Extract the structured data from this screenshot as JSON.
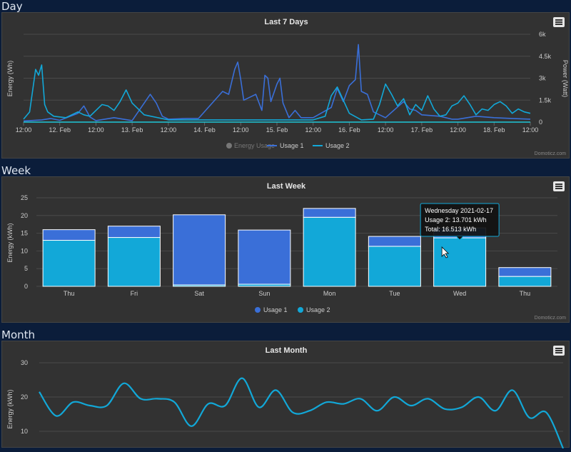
{
  "sections": {
    "day": "Day",
    "week": "Week",
    "month": "Month"
  },
  "credit": "Domoticz.com",
  "colors": {
    "usage1": "#3a6fd8",
    "usage2": "#12a8d8",
    "energy": "#777777",
    "grid": "#4a4a4a",
    "panel": "#323232",
    "text": "#cccccc"
  },
  "chart_data": [
    {
      "type": "line",
      "title": "Last 7 Days",
      "ylabel": "Energy (Wh)",
      "y2label": "Power (Watt)",
      "y2ticks": [
        "0",
        "1.5k",
        "3k",
        "4.5k",
        "6k"
      ],
      "y2lim": [
        0,
        6000
      ],
      "xticks": [
        "12:00",
        "12. Feb",
        "12:00",
        "13. Feb",
        "12:00",
        "14. Feb",
        "12:00",
        "15. Feb",
        "12:00",
        "16. Feb",
        "12:00",
        "17. Feb",
        "12:00",
        "18. Feb",
        "12:00"
      ],
      "x_range_hours": [
        0,
        168
      ],
      "legend": [
        "Energy Usage",
        "Usage 1",
        "Usage 2"
      ],
      "series": [
        {
          "name": "Usage 1",
          "points": [
            [
              0,
              80
            ],
            [
              6,
              150
            ],
            [
              9,
              250
            ],
            [
              12,
              120
            ],
            [
              18,
              600
            ],
            [
              20,
              1100
            ],
            [
              22,
              350
            ],
            [
              24,
              100
            ],
            [
              30,
              300
            ],
            [
              36,
              100
            ],
            [
              42,
              1900
            ],
            [
              44,
              1300
            ],
            [
              46,
              400
            ],
            [
              48,
              200
            ],
            [
              54,
              250
            ],
            [
              58,
              250
            ],
            [
              66,
              2100
            ],
            [
              68,
              1900
            ],
            [
              70,
              3600
            ],
            [
              71,
              4100
            ],
            [
              72,
              2900
            ],
            [
              73,
              1500
            ],
            [
              75,
              1700
            ],
            [
              77,
              1900
            ],
            [
              79,
              800
            ],
            [
              80,
              3200
            ],
            [
              81,
              3000
            ],
            [
              82,
              1400
            ],
            [
              84,
              2600
            ],
            [
              85,
              3000
            ],
            [
              86,
              1300
            ],
            [
              88,
              300
            ],
            [
              90,
              800
            ],
            [
              92,
              300
            ],
            [
              96,
              300
            ],
            [
              102,
              1000
            ],
            [
              104,
              2300
            ],
            [
              106,
              1400
            ],
            [
              108,
              2500
            ],
            [
              110,
              2900
            ],
            [
              111,
              5300
            ],
            [
              112,
              2100
            ],
            [
              114,
              1900
            ],
            [
              116,
              700
            ],
            [
              120,
              300
            ],
            [
              126,
              1400
            ],
            [
              128,
              900
            ],
            [
              130,
              800
            ],
            [
              132,
              500
            ],
            [
              138,
              400
            ],
            [
              142,
              200
            ],
            [
              144,
              200
            ],
            [
              150,
              400
            ],
            [
              156,
              300
            ],
            [
              162,
              250
            ],
            [
              168,
              200
            ]
          ]
        },
        {
          "name": "Usage 2",
          "points": [
            [
              0,
              200
            ],
            [
              2,
              700
            ],
            [
              4,
              3600
            ],
            [
              5,
              3200
            ],
            [
              6,
              3900
            ],
            [
              7,
              1200
            ],
            [
              8,
              700
            ],
            [
              10,
              400
            ],
            [
              14,
              300
            ],
            [
              18,
              700
            ],
            [
              20,
              500
            ],
            [
              22,
              400
            ],
            [
              26,
              1200
            ],
            [
              28,
              1100
            ],
            [
              30,
              800
            ],
            [
              32,
              1400
            ],
            [
              34,
              2200
            ],
            [
              36,
              1300
            ],
            [
              38,
              900
            ],
            [
              40,
              500
            ],
            [
              48,
              150
            ],
            [
              60,
              150
            ],
            [
              84,
              150
            ],
            [
              96,
              150
            ],
            [
              100,
              400
            ],
            [
              102,
              1800
            ],
            [
              104,
              2400
            ],
            [
              106,
              1500
            ],
            [
              108,
              600
            ],
            [
              112,
              150
            ],
            [
              116,
              200
            ],
            [
              118,
              1200
            ],
            [
              120,
              2600
            ],
            [
              122,
              1900
            ],
            [
              124,
              1100
            ],
            [
              126,
              1600
            ],
            [
              128,
              500
            ],
            [
              130,
              1200
            ],
            [
              132,
              800
            ],
            [
              134,
              1800
            ],
            [
              136,
              900
            ],
            [
              138,
              400
            ],
            [
              140,
              500
            ],
            [
              142,
              1100
            ],
            [
              144,
              1300
            ],
            [
              146,
              1800
            ],
            [
              148,
              1200
            ],
            [
              150,
              500
            ],
            [
              152,
              900
            ],
            [
              154,
              800
            ],
            [
              156,
              1200
            ],
            [
              158,
              1400
            ],
            [
              160,
              1100
            ],
            [
              162,
              600
            ],
            [
              164,
              900
            ],
            [
              166,
              700
            ],
            [
              168,
              600
            ]
          ]
        }
      ]
    },
    {
      "type": "bar",
      "title": "Last Week",
      "ylabel": "Energy (kWh)",
      "ylim": [
        0,
        25
      ],
      "yticks": [
        "0",
        "5",
        "10",
        "15",
        "20",
        "25"
      ],
      "categories": [
        "Thu",
        "Fri",
        "Sat",
        "Sun",
        "Mon",
        "Tue",
        "Wed",
        "Thu"
      ],
      "series": [
        {
          "name": "Usage 1",
          "values": [
            3.0,
            3.2,
            19.8,
            15.3,
            2.5,
            2.8,
            2.8,
            2.5
          ]
        },
        {
          "name": "Usage 2",
          "values": [
            13.0,
            13.8,
            0.4,
            0.6,
            19.5,
            11.3,
            13.7,
            2.8
          ]
        }
      ],
      "legend": [
        "Usage 1",
        "Usage 2"
      ],
      "tooltip": {
        "date": "Wednesday 2021-02-17",
        "usage": "Usage 2: 13.701 kWh",
        "total": "Total: 16.513 kWh"
      }
    },
    {
      "type": "line",
      "title": "Last Month",
      "ylabel": "Energy (kWh)",
      "ylim": [
        5,
        30
      ],
      "yticks": [
        "10",
        "20",
        "30"
      ],
      "values": [
        21.5,
        14.5,
        18.5,
        17.5,
        17.5,
        24,
        19.5,
        19.5,
        18.5,
        11.5,
        18,
        17.5,
        25.5,
        17,
        22,
        15.5,
        16,
        18.5,
        18,
        19.5,
        16,
        20,
        17.5,
        19.5,
        16.5,
        17,
        20,
        16,
        22,
        14,
        15.5,
        5
      ]
    }
  ]
}
